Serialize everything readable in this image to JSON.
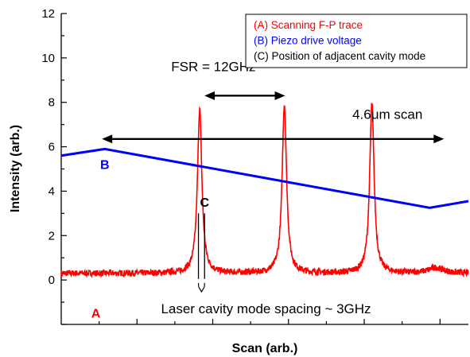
{
  "chart_data": {
    "type": "line",
    "title": "",
    "xlabel": "Scan (arb.)",
    "ylabel": "Intensity (arb.)",
    "ylim": [
      -2,
      12
    ],
    "y_ticks": [
      0,
      2,
      4,
      6,
      8,
      10,
      12
    ],
    "x_tick_labels": "none",
    "series": [
      {
        "name": "(A) Scanning F-P trace",
        "tag": "A",
        "color": "#ff0000",
        "baseline": 0.3,
        "peaks": [
          {
            "x": 0.34,
            "height": 7.7
          },
          {
            "x": 0.548,
            "height": 7.9
          },
          {
            "x": 0.763,
            "height": 7.95
          },
          {
            "x": 0.92,
            "height": 0.55
          }
        ]
      },
      {
        "name": "(B) Piezo drive voltage",
        "tag": "B",
        "color": "#0000ff",
        "points": [
          [
            0.0,
            5.6
          ],
          [
            0.107,
            5.9
          ],
          [
            0.905,
            3.25
          ],
          [
            1.0,
            3.55
          ]
        ]
      },
      {
        "name": "(C) Position of adjacent cavity mode",
        "tag": "C",
        "color": "#000000"
      }
    ],
    "annotations": {
      "fsr": "FSR = 12GHz",
      "scan": "4.6μm scan",
      "spacing": "Laser cavity mode spacing ~ 3GHz"
    },
    "legend_position": "top-right",
    "grid": false
  }
}
